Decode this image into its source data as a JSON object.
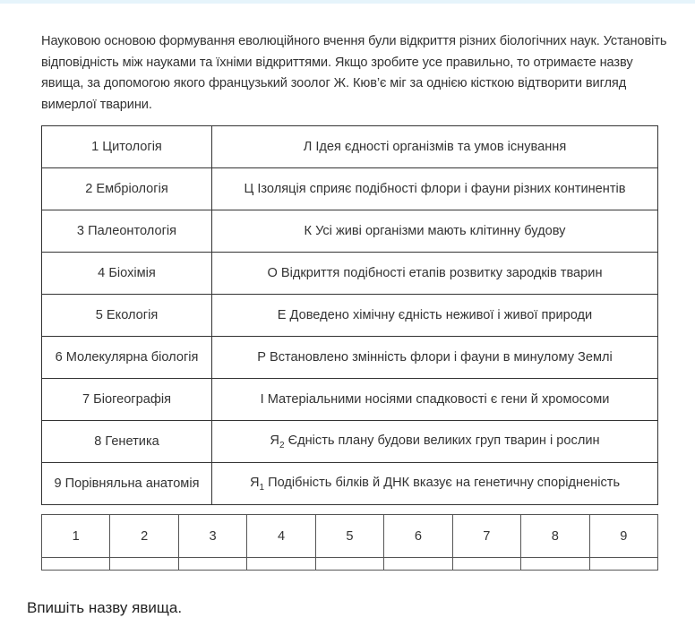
{
  "intro": "Науковою основою формування еволюційного вчення були відкриття різних біологічних наук. Установіть відповідність між науками та їхніми відкриттями. Якщо зробите усе правильно, то отримаєте назву явища, за допомогою якого французький зоолог Ж. Кюв’є міг за однією кісткою відтворити вигляд вимерлої тварини.",
  "rows": [
    {
      "science": "1 Цитологія",
      "discovery": "Л Ідея єдності організмів та умов існування"
    },
    {
      "science": "2 Ембріологія",
      "discovery": "Ц Ізоляція сприяє подібності флори і фауни різних континентів"
    },
    {
      "science": "3 Палеонтологія",
      "discovery": "К Усі живі організми мають клітинну будову"
    },
    {
      "science": "4 Біохімія",
      "discovery": "О Відкриття подібності етапів розвитку зародків тварин"
    },
    {
      "science": "5 Екологія",
      "discovery": "Е Доведено хімічну єдність неживої і живої природи"
    },
    {
      "science": "6 Молекулярна біологія",
      "discovery": "Р Встановлено змінність флори і фауни в минулому Землі"
    },
    {
      "science": "7 Біогеографія",
      "discovery": "І Матеріальними носіями спадковості є гени й хромосоми"
    },
    {
      "science": "8 Генетика",
      "letter": "Я",
      "sub": "2",
      "discovery": " Єдність плану будови великих груп тварин і рослин"
    },
    {
      "science": "9 Порівняльна анатомія",
      "letter": "Я",
      "sub": "1",
      "discovery": " Подібність білків й ДНК вказує на генетичну спорідненість"
    }
  ],
  "answer_headers": [
    "1",
    "2",
    "3",
    "4",
    "5",
    "6",
    "7",
    "8",
    "9"
  ],
  "answers": [
    "",
    "",
    "",
    "",
    "",
    "",
    "",
    "",
    ""
  ],
  "prompt": "Впишіть назву явища."
}
